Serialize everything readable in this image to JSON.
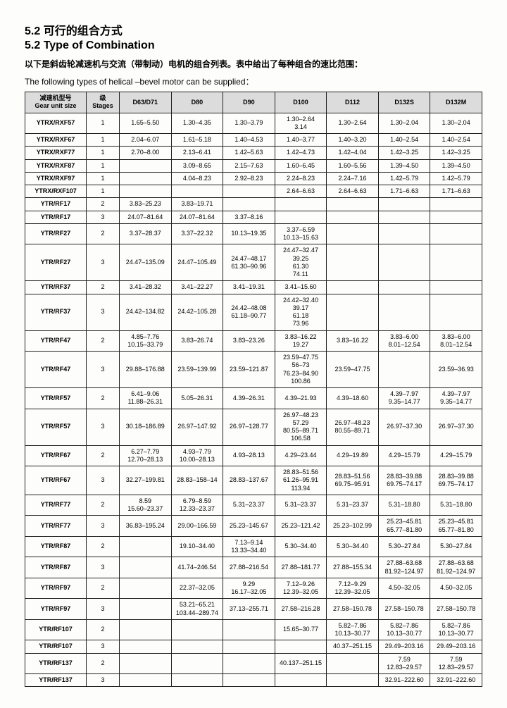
{
  "title_cn": "5.2 可行的组合方式",
  "title_en": "5.2 Type of Combination",
  "intro_cn": "以下是斜齿轮减速机与交流（带制动）电机的组合列表。表中给出了每种组合的速比范围：",
  "intro_en": "The following types of helical –bevel motor can be supplied：",
  "headers": {
    "gear_cn": "减速机型号",
    "gear_en": "Gear unit size",
    "stage_cn": "级",
    "stage_en": "Stages",
    "cols": [
      "D63/D71",
      "D80",
      "D90",
      "D100",
      "D112",
      "D132S",
      "D132M"
    ]
  },
  "rows": [
    {
      "model": "YTRX/RXF57",
      "stage": "1",
      "c": [
        "1.65–5.50",
        "1.30–4.35",
        "1.30–3.79",
        "1.30–2.64\n3.14",
        "1.30–2.64",
        "1.30–2.04",
        "1.30–2.04"
      ]
    },
    {
      "model": "YTRX/RXF67",
      "stage": "1",
      "c": [
        "2.04–6.07",
        "1.61–5.18",
        "1.40–4.53",
        "1.40–3.77",
        "1.40–3.20",
        "1.40–2.54",
        "1.40–2.54"
      ]
    },
    {
      "model": "YTRX/RXF77",
      "stage": "1",
      "c": [
        "2.70–8.00",
        "2.13–6.41",
        "1.42–5.63",
        "1.42–4.73",
        "1.42–4.04",
        "1.42–3.25",
        "1.42–3.25"
      ]
    },
    {
      "model": "YTRX/RXF87",
      "stage": "1",
      "c": [
        "",
        "3.09–8.65",
        "2.15–7.63",
        "1.60–6.45",
        "1.60–5.56",
        "1.39–4.50",
        "1.39–4.50"
      ]
    },
    {
      "model": "YTRX/RXF97",
      "stage": "1",
      "c": [
        "",
        "4.04–8.23",
        "2.92–8.23",
        "2.24–8.23",
        "2.24–7.16",
        "1.42–5.79",
        "1.42–5.79"
      ]
    },
    {
      "model": "YTRX/RXF107",
      "stage": "1",
      "c": [
        "",
        "",
        "",
        "2.64–6.63",
        "2.64–6.63",
        "1.71–6.63",
        "1.71–6.63"
      ]
    },
    {
      "model": "YTR/RF17",
      "stage": "2",
      "c": [
        "3.83–25.23",
        "3.83–19.71",
        "",
        "",
        "",
        "",
        ""
      ]
    },
    {
      "model": "YTR/RF17",
      "stage": "3",
      "c": [
        "24.07–81.64",
        "24.07–81.64",
        "3.37–8.16",
        "",
        "",
        "",
        ""
      ]
    },
    {
      "model": "YTR/RF27",
      "stage": "2",
      "c": [
        "3.37–28.37",
        "3.37–22.32",
        "10.13–19.35",
        "3.37–6.59\n10.13–15.63",
        "",
        "",
        ""
      ]
    },
    {
      "model": "YTR/RF27",
      "stage": "3",
      "c": [
        "24.47–135.09",
        "24.47–105.49",
        "24.47–48.17\n61.30–90.96",
        "24.47–32.47\n39.25\n61.30\n74.11",
        "",
        "",
        ""
      ]
    },
    {
      "model": "YTR/RF37",
      "stage": "2",
      "c": [
        "3.41–28.32",
        "3.41–22.27",
        "3.41–19.31",
        "3.41–15.60",
        "",
        "",
        ""
      ]
    },
    {
      "model": "YTR/RF37",
      "stage": "3",
      "c": [
        "24.42–134.82",
        "24.42–105.28",
        "24.42–48.08\n61.18–90.77",
        "24.42–32.40\n39.17\n61.18\n73.96",
        "",
        "",
        ""
      ]
    },
    {
      "model": "YTR/RF47",
      "stage": "2",
      "c": [
        "4.85–7.76\n10.15–33.79",
        "3.83–26.74",
        "3.83–23.26",
        "3.83–16.22\n19.27",
        "3.83–16.22",
        "3.83–6.00\n8.01–12.54",
        "3.83–6.00\n8.01–12.54"
      ]
    },
    {
      "model": "YTR/RF47",
      "stage": "3",
      "c": [
        "29.88–176.88",
        "23.59–139.99",
        "23.59–121.87",
        "23.59–47.75\n56–73\n76.23–84.90\n100.86",
        "23.59–47.75",
        "",
        "23.59–36.93"
      ]
    },
    {
      "model": "YTR/RF57",
      "stage": "2",
      "c": [
        "6.41–9.06\n11.88–26.31",
        "5.05–26.31",
        "4.39–26.31",
        "4.39–21.93",
        "4.39–18.60",
        "4.39–7.97\n9.35–14.77",
        "4.39–7.97\n9.35–14.77"
      ]
    },
    {
      "model": "YTR/RF57",
      "stage": "3",
      "c": [
        "30.18–186.89",
        "26.97–147.92",
        "26.97–128.77",
        "26.97–48.23\n57.29\n80.55–89.71\n106.58",
        "26.97–48.23\n80.55–89.71",
        "26.97–37.30",
        "26.97–37.30"
      ]
    },
    {
      "model": "YTR/RF67",
      "stage": "2",
      "c": [
        "6.27–7.79\n12.70–28.13",
        "4.93–7.79\n10.00–28.13",
        "4.93–28.13",
        "4.29–23.44",
        "4.29–19.89",
        "4.29–15.79",
        "4.29–15.79"
      ]
    },
    {
      "model": "YTR/RF67",
      "stage": "3",
      "c": [
        "32.27–199.81",
        "28.83–158–14",
        "28.83–137.67",
        "28.83–51.56\n61.26–95.91\n113.94",
        "28.83–51.56\n69.75–95.91",
        "28.83–39.88\n69.75–74.17",
        "28.83–39.88\n69.75–74.17"
      ]
    },
    {
      "model": "YTR/RF77",
      "stage": "2",
      "c": [
        "8.59\n15.60–23.37",
        "6.79–8.59\n12.33–23.37",
        "5.31–23.37",
        "5.31–23.37",
        "5.31–23.37",
        "5.31–18.80",
        "5.31–18.80"
      ]
    },
    {
      "model": "YTR/RF77",
      "stage": "3",
      "c": [
        "36.83–195.24",
        "29.00–166.59",
        "25.23–145.67",
        "25.23–121.42",
        "25.23–102.99",
        "25.23–45.81\n65.77–81.80",
        "25.23–45.81\n65.77–81.80"
      ]
    },
    {
      "model": "YTR/RF87",
      "stage": "2",
      "c": [
        "",
        "19.10–34.40",
        "7.13–9.14\n13.33–34.40",
        "5.30–34.40",
        "5.30–34.40",
        "5.30–27.84",
        "5.30–27.84"
      ]
    },
    {
      "model": "YTR/RF87",
      "stage": "3",
      "c": [
        "",
        "41.74–246.54",
        "27.88–216.54",
        "27.88–181.77",
        "27.88–155.34",
        "27.88–63.68\n81.92–124.97",
        "27.88–63.68\n81.92–124.97"
      ]
    },
    {
      "model": "YTR/RF97",
      "stage": "2",
      "c": [
        "",
        "22.37–32.05",
        "9.29\n16.17–32.05",
        "7.12–9.26\n12.39–32.05",
        "7.12–9.29\n12.39–32.05",
        "4.50–32.05",
        "4.50–32.05"
      ]
    },
    {
      "model": "YTR/RF97",
      "stage": "3",
      "c": [
        "",
        "53.21–65.21\n103.44–289.74",
        "37.13–255.71",
        "27.58–216.28",
        "27.58–150.78",
        "27.58–150.78",
        "27.58–150.78"
      ]
    },
    {
      "model": "YTR/RF107",
      "stage": "2",
      "c": [
        "",
        "",
        "",
        "15.65–30.77",
        "5.82–7.86\n10.13–30.77",
        "5.82–7.86\n10.13–30.77",
        "5.82–7.86\n10.13–30.77"
      ]
    },
    {
      "model": "YTR/RF107",
      "stage": "3",
      "c": [
        "",
        "",
        "",
        "",
        "40.37–251.15",
        "29.49–203.16",
        "29.49–203.16"
      ]
    },
    {
      "model": "YTR/RF137",
      "stage": "2",
      "c": [
        "",
        "",
        "",
        "40.137–251.15",
        "",
        "7.59\n12.83–29.57",
        "7.59\n12.83–29.57"
      ]
    },
    {
      "model": "YTR/RF137",
      "stage": "3",
      "c": [
        "",
        "",
        "",
        "",
        "",
        "32.91–222.60",
        "32.91–222.60"
      ]
    }
  ]
}
